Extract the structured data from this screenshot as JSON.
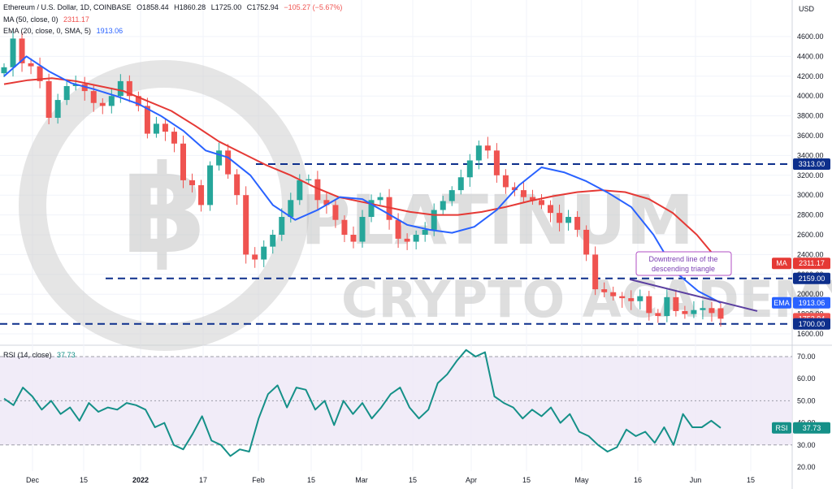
{
  "header": {
    "title": "Ethereum / U.S. Dollar, 1D, COINBASE",
    "ohlc": {
      "o": "O1858.44",
      "h": "H1860.28",
      "l": "L1725.00",
      "c": "C1752.94",
      "chg": "−105.27 (−5.67%)"
    },
    "ma_label": "MA (50, close, 0)",
    "ma_value": "2311.17",
    "ema_label": "EMA (20, close, 0, SMA, 5)",
    "ema_value": "1913.06",
    "rsi_label": "RSI (14, close)",
    "rsi_value": "37.73",
    "currency": "USD"
  },
  "watermark": {
    "line1": "PLATINUM",
    "line2": "CRYPTO ACADEMY"
  },
  "annotation": {
    "text_line1": "Downtrend line of the",
    "text_line2": "descending triangle"
  },
  "tags": {
    "ma": {
      "label": "MA",
      "value": "2311.17"
    },
    "ema": {
      "label": "EMA",
      "value": "1913.06"
    },
    "price": {
      "value": "1752.94"
    },
    "res": {
      "value": "3313.00"
    },
    "res2": {
      "value": "2159.00"
    },
    "sup": {
      "value": "1700.00"
    },
    "rsi": {
      "label": "RSI",
      "value": "37.73"
    }
  },
  "colors": {
    "up": "#26a69a",
    "down": "#ef5350",
    "ma": "#e53935",
    "ema": "#2962ff",
    "rsi": "#159088",
    "level": "#0d2f8c",
    "trendline": "#5b3fa0",
    "annotation_border": "#b14fc5",
    "rsi_band": "#ede7f6"
  },
  "chart_data": [
    {
      "type": "candlestick",
      "title": "Ethereum / U.S. Dollar, 1D, COINBASE",
      "ylabel": "USD",
      "ylim": [
        1600,
        4800
      ],
      "y_ticks": [
        "4600.00",
        "4400.00",
        "4200.00",
        "4000.00",
        "3800.00",
        "3600.00",
        "3400.00",
        "3200.00",
        "3000.00",
        "2800.00",
        "2600.00",
        "2400.00",
        "2200.00",
        "2000.00",
        "1800.00",
        "1600.00"
      ],
      "x_ticks": [
        "Dec",
        "15",
        "2022",
        "17",
        "Feb",
        "15",
        "Mar",
        "15",
        "Apr",
        "15",
        "May",
        "16",
        "Jun",
        "15"
      ],
      "close_series": [
        4290,
        4580,
        4330,
        4300,
        4150,
        3780,
        3960,
        4100,
        4120,
        4050,
        3930,
        3900,
        4000,
        4150,
        4000,
        3900,
        3620,
        3720,
        3640,
        3520,
        3150,
        3100,
        2900,
        3300,
        3450,
        3210,
        3000,
        2400,
        2350,
        2480,
        2600,
        2780,
        2950,
        3150,
        3160,
        2950,
        2900,
        2750,
        2600,
        2530,
        2780,
        2950,
        2980,
        2750,
        2560,
        2530,
        2600,
        2650,
        2850,
        2940,
        3050,
        3180,
        3350,
        3500,
        3450,
        3200,
        3080,
        3050,
        2980,
        2950,
        2900,
        2820,
        2720,
        2780,
        2650,
        2400,
        2050,
        2020,
        1980,
        1960,
        1930,
        1980,
        1810,
        1780,
        1970,
        1830,
        1800,
        1840,
        1860,
        1810,
        1752.94
      ],
      "ma50_series": [
        4120,
        4160,
        4180,
        4150,
        4100,
        4050,
        3950,
        3850,
        3700,
        3540,
        3420,
        3300,
        3200,
        3080,
        2980,
        2930,
        2880,
        2830,
        2800,
        2800,
        2830,
        2880,
        2940,
        2990,
        3030,
        3050,
        3030,
        2960,
        2820,
        2600,
        2311.17
      ],
      "ema20_series": [
        4200,
        4400,
        4250,
        4130,
        4070,
        4000,
        3920,
        3800,
        3650,
        3450,
        3380,
        3200,
        2900,
        2750,
        2850,
        2980,
        2960,
        2830,
        2700,
        2650,
        2620,
        2680,
        2850,
        3100,
        3280,
        3230,
        3140,
        3020,
        2880,
        2600,
        2220,
        2030,
        1913.06
      ],
      "levels": [
        3313,
        2159,
        1700
      ],
      "last_price": 1752.94
    },
    {
      "type": "line",
      "title": "RSI (14, close)",
      "ylim": [
        20,
        75
      ],
      "y_ticks": [
        "70.00",
        "60.00",
        "50.00",
        "40.00",
        "30.00",
        "20.00"
      ],
      "series": [
        {
          "name": "RSI (14, close)",
          "values": [
            51,
            48,
            56,
            52,
            46,
            50,
            44,
            47,
            41,
            49,
            45,
            47,
            46,
            49,
            48,
            46,
            38,
            40,
            30,
            28,
            35,
            43,
            32,
            30,
            25,
            28,
            27,
            42,
            53,
            57,
            47,
            56,
            55,
            46,
            50,
            39,
            50,
            44,
            49,
            42,
            47,
            53,
            56,
            47,
            42,
            46,
            58,
            62,
            68,
            73,
            70,
            72,
            52,
            49,
            47,
            42,
            46,
            43,
            47,
            40,
            44,
            36,
            34,
            30,
            27,
            29,
            37,
            34,
            36,
            31,
            38,
            30,
            44,
            38,
            38,
            41,
            37.73
          ]
        }
      ],
      "bands": [
        70,
        50,
        30
      ]
    }
  ]
}
